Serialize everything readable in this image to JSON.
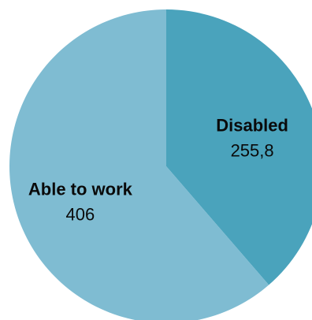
{
  "chart_data": {
    "type": "pie",
    "title": "",
    "start_angle_deg": 0,
    "direction": "clockwise",
    "slices": [
      {
        "name": "Disabled",
        "value": 255.8,
        "value_label": "255,8",
        "color": "#4aa3bc"
      },
      {
        "name": "Able to work",
        "value": 406,
        "value_label": "406",
        "color": "#7fbcd2"
      }
    ]
  }
}
